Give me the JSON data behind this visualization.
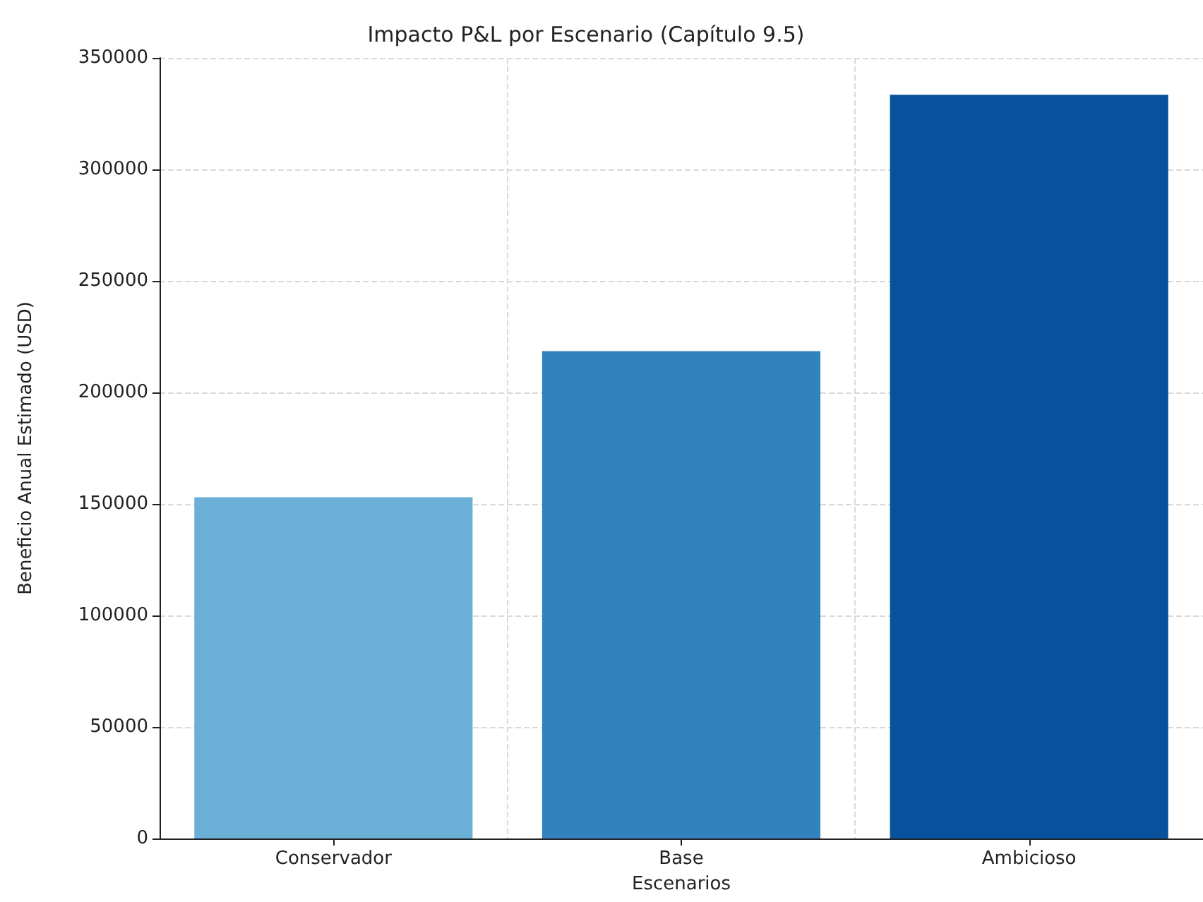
{
  "chart_data": {
    "type": "bar",
    "title": "Impacto P&L por Escenario (Capítulo 9.5)",
    "xlabel": "Escenarios",
    "ylabel": "Beneficio Anual Estimado (USD)",
    "categories": [
      "Conservador",
      "Base",
      "Ambicioso"
    ],
    "values": [
      153000,
      218500,
      333500
    ],
    "colors": [
      "#6baed6",
      "#3182bd",
      "#08519c"
    ],
    "ylim": [
      0,
      350000
    ],
    "yticks": [
      0,
      50000,
      100000,
      150000,
      200000,
      250000,
      300000,
      350000
    ],
    "grid": true
  }
}
